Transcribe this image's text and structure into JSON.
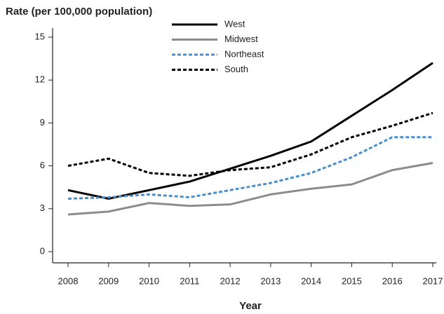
{
  "chart_data": {
    "type": "line",
    "ylabel": "Rate (per 100,000 population)",
    "xlabel": "Year",
    "categories": [
      "2008",
      "2009",
      "2010",
      "2011",
      "2012",
      "2013",
      "2014",
      "2015",
      "2016",
      "2017"
    ],
    "series": [
      {
        "name": "West",
        "color": "#000000",
        "style": "solid",
        "values": [
          4.3,
          3.7,
          4.3,
          4.9,
          5.8,
          6.7,
          7.7,
          9.5,
          11.3,
          13.2
        ]
      },
      {
        "name": "Midwest",
        "color": "#8c8c8c",
        "style": "solid",
        "values": [
          2.6,
          2.8,
          3.4,
          3.2,
          3.3,
          4.0,
          4.4,
          4.7,
          5.7,
          6.2
        ]
      },
      {
        "name": "Northeast",
        "color": "#4a8fcb",
        "style": "dashed",
        "values": [
          3.7,
          3.8,
          4.0,
          3.8,
          4.3,
          4.8,
          5.5,
          6.6,
          8.0,
          8.0
        ]
      },
      {
        "name": "South",
        "color": "#000000",
        "style": "dashed",
        "values": [
          6.0,
          6.5,
          5.5,
          5.3,
          5.7,
          5.9,
          6.8,
          8.0,
          8.8,
          9.7
        ]
      }
    ],
    "ylim": [
      0,
      15
    ],
    "yticks": [
      0,
      3,
      6,
      9,
      12,
      15
    ],
    "grid": false,
    "legend": "top"
  }
}
